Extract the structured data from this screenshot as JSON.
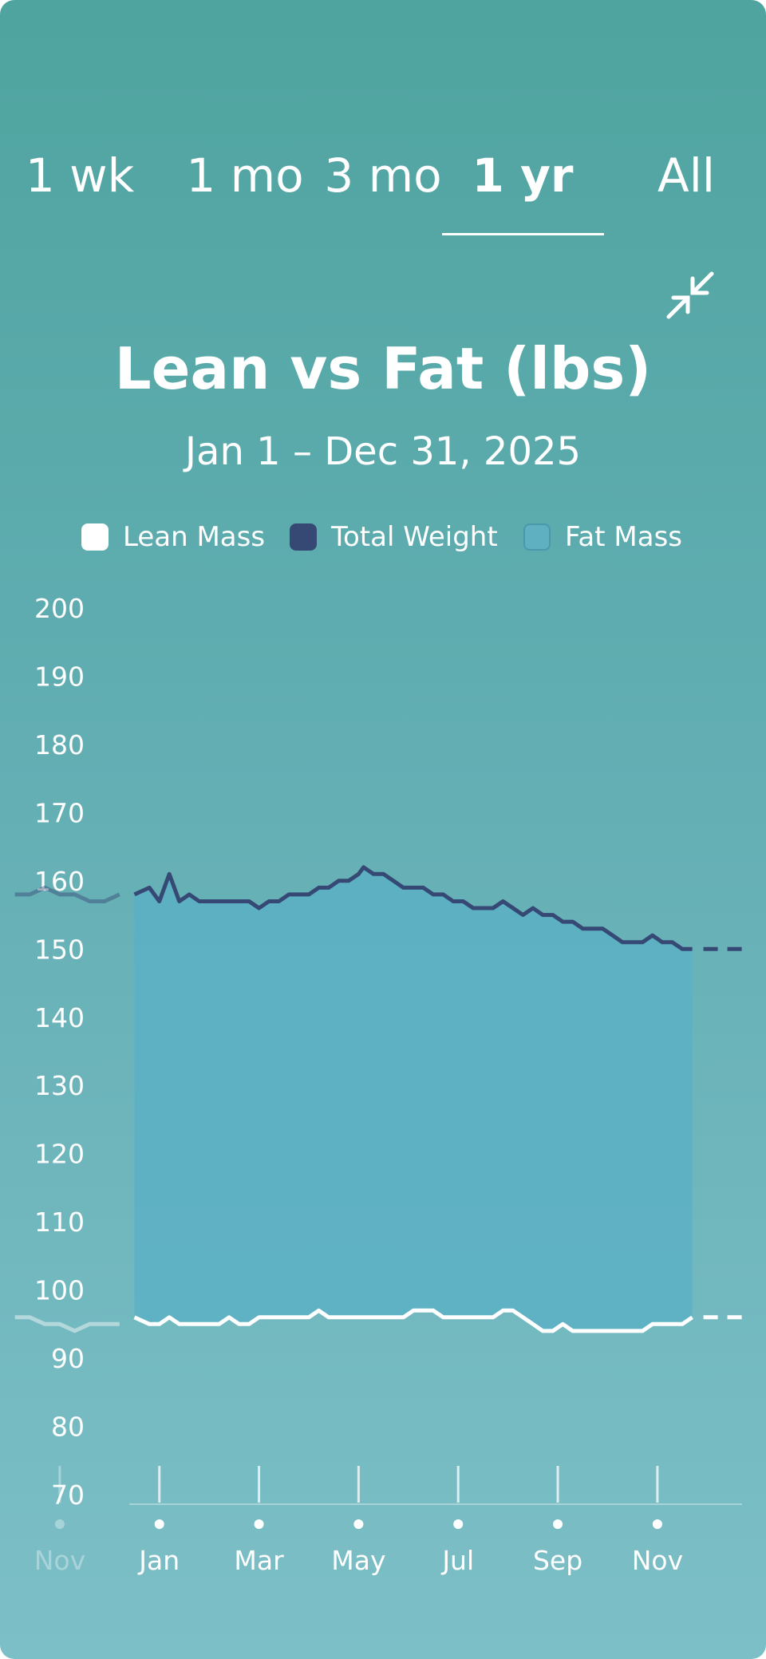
{
  "tabs": [
    {
      "label": "1 wk",
      "active": false
    },
    {
      "label": "1 mo",
      "active": false
    },
    {
      "label": "3 mo",
      "active": false
    },
    {
      "label": "1 yr",
      "active": true
    },
    {
      "label": "All",
      "active": false
    }
  ],
  "collapse_icon": "collapse-arrows-icon",
  "chart_data": {
    "type": "area",
    "title": "Lean vs Fat (lbs)",
    "subtitle": "Jan 1 – Dec 31, 2025",
    "legend": [
      {
        "name": "Lean Mass",
        "color": "#ffffff"
      },
      {
        "name": "Total Weight",
        "color": "#364874"
      },
      {
        "name": "Fat Mass",
        "color": "#5fb1c2"
      }
    ],
    "ylim": [
      70,
      200
    ],
    "y_ticks": [
      200,
      190,
      180,
      170,
      160,
      150,
      140,
      130,
      120,
      110,
      100,
      90,
      80,
      70
    ],
    "x_ticks": [
      {
        "label": "Nov",
        "month": -1,
        "faded": true
      },
      {
        "label": "Jan",
        "month": 1,
        "faded": false
      },
      {
        "label": "Mar",
        "month": 3,
        "faded": false
      },
      {
        "label": "May",
        "month": 5,
        "faded": false
      },
      {
        "label": "Jul",
        "month": 7,
        "faded": false
      },
      {
        "label": "Sep",
        "month": 9,
        "faded": false
      },
      {
        "label": "Nov",
        "month": 11,
        "faded": false
      }
    ],
    "series": [
      {
        "name": "Total Weight",
        "x": [
          -1.9,
          -1.6,
          -1.3,
          -1.0,
          -0.7,
          -0.4,
          -0.1,
          0.2,
          0.5,
          0.8,
          1.0,
          1.2,
          1.4,
          1.6,
          1.8,
          2.0,
          2.2,
          2.4,
          2.6,
          2.8,
          3.0,
          3.2,
          3.4,
          3.6,
          3.8,
          4.0,
          4.2,
          4.4,
          4.6,
          4.8,
          5.0,
          5.1,
          5.3,
          5.5,
          5.7,
          5.9,
          6.1,
          6.3,
          6.5,
          6.7,
          6.9,
          7.1,
          7.3,
          7.5,
          7.7,
          7.9,
          8.1,
          8.3,
          8.5,
          8.7,
          8.9,
          9.1,
          9.3,
          9.5,
          9.7,
          9.9,
          10.1,
          10.3,
          10.5,
          10.7,
          10.9,
          11.1,
          11.3,
          11.5,
          11.7
        ],
        "y": [
          158,
          158,
          159,
          158,
          158,
          157,
          157,
          158,
          158,
          159,
          157,
          161,
          157,
          158,
          157,
          157,
          157,
          157,
          157,
          157,
          156,
          157,
          157,
          158,
          158,
          158,
          159,
          159,
          160,
          160,
          161,
          162,
          161,
          161,
          160,
          159,
          159,
          159,
          158,
          158,
          157,
          157,
          156,
          156,
          156,
          157,
          156,
          155,
          156,
          155,
          155,
          154,
          154,
          153,
          153,
          153,
          152,
          151,
          151,
          151,
          152,
          151,
          151,
          150,
          150
        ]
      },
      {
        "name": "Lean Mass",
        "x": [
          -1.9,
          -1.6,
          -1.3,
          -1.0,
          -0.7,
          -0.4,
          -0.1,
          0.2,
          0.5,
          0.8,
          1.0,
          1.2,
          1.4,
          1.6,
          1.8,
          2.0,
          2.2,
          2.4,
          2.6,
          2.8,
          3.0,
          3.2,
          3.4,
          3.6,
          3.8,
          4.0,
          4.2,
          4.4,
          4.6,
          4.8,
          5.0,
          5.1,
          5.3,
          5.5,
          5.7,
          5.9,
          6.1,
          6.3,
          6.5,
          6.7,
          6.9,
          7.1,
          7.3,
          7.5,
          7.7,
          7.9,
          8.1,
          8.3,
          8.5,
          8.7,
          8.9,
          9.1,
          9.3,
          9.5,
          9.7,
          9.9,
          10.1,
          10.3,
          10.5,
          10.7,
          10.9,
          11.1,
          11.3,
          11.5,
          11.7
        ],
        "y": [
          96,
          96,
          95,
          95,
          94,
          95,
          95,
          95,
          96,
          95,
          95,
          96,
          95,
          95,
          95,
          95,
          95,
          96,
          95,
          95,
          96,
          96,
          96,
          96,
          96,
          96,
          97,
          96,
          96,
          96,
          96,
          96,
          96,
          96,
          96,
          96,
          97,
          97,
          97,
          96,
          96,
          96,
          96,
          96,
          96,
          97,
          97,
          96,
          95,
          94,
          94,
          95,
          94,
          94,
          94,
          94,
          94,
          94,
          94,
          94,
          95,
          95,
          95,
          95,
          96
        ]
      }
    ],
    "projection": {
      "total_weight": 150,
      "lean_mass": 96
    },
    "highlight_range": [
      0.4,
      11.7
    ],
    "xlim": [
      -2.2,
      12.7
    ]
  }
}
